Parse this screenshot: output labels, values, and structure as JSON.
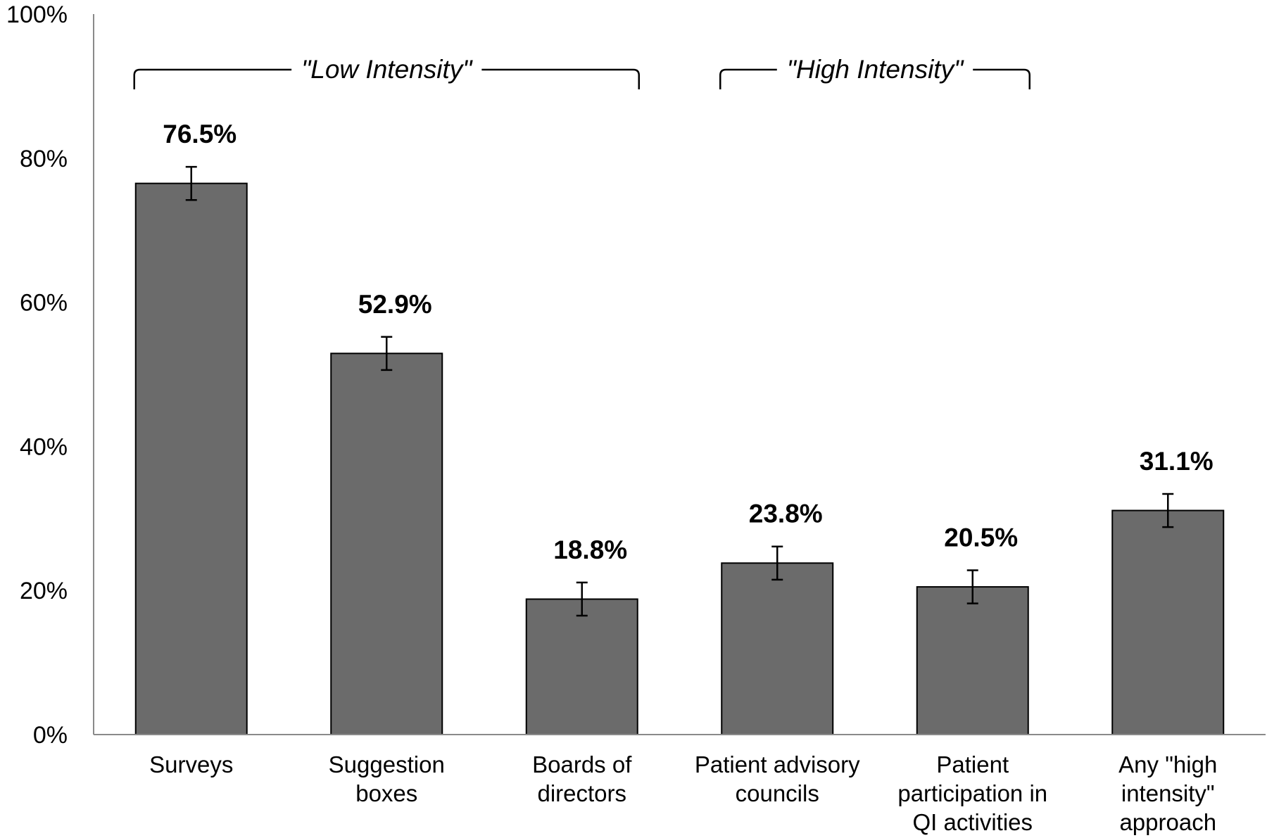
{
  "chart_data": {
    "type": "bar",
    "categories": [
      [
        "Surveys"
      ],
      [
        "Suggestion",
        "boxes"
      ],
      [
        "Boards of",
        "directors"
      ],
      [
        "Patient advisory",
        "councils"
      ],
      [
        "Patient",
        "participation in",
        "QI activities"
      ],
      [
        "Any \"high",
        "intensity\"",
        "approach"
      ]
    ],
    "values": [
      76.5,
      52.9,
      18.8,
      23.8,
      20.5,
      31.1
    ],
    "value_labels": [
      "76.5%",
      "52.9%",
      "18.8%",
      "23.8%",
      "20.5%",
      "31.1%"
    ],
    "error_bars": [
      [
        74.2,
        78.8
      ],
      [
        50.6,
        55.2
      ],
      [
        16.5,
        21.1
      ],
      [
        21.5,
        26.1
      ],
      [
        18.2,
        22.8
      ],
      [
        28.8,
        33.4
      ]
    ],
    "ylim": [
      0,
      100
    ],
    "yticks": [
      {
        "value": 0,
        "label": "0%"
      },
      {
        "value": 20,
        "label": "20%"
      },
      {
        "value": 40,
        "label": "40%"
      },
      {
        "value": 60,
        "label": "60%"
      },
      {
        "value": 80,
        "label": "80%"
      },
      {
        "value": 100,
        "label": "100%"
      }
    ],
    "groups": [
      {
        "label": "\"Low Intensity\"",
        "from": 0,
        "to": 2
      },
      {
        "label": "\"High Intensity\"",
        "from": 3,
        "to": 4
      }
    ],
    "bar_color": "#6b6b6b",
    "grid": false
  }
}
